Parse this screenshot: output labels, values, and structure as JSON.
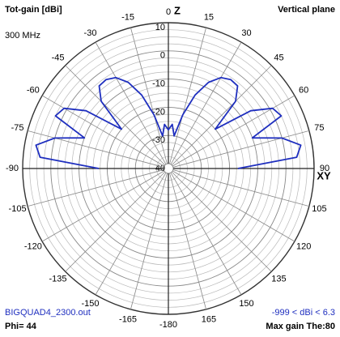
{
  "chart_data": {
    "type": "polar",
    "title": "Tot-gain [dBi]",
    "subtitle": "Vertical plane",
    "frequency": "300 MHz",
    "axis_label_vertical": "Z",
    "axis_label_horizontal": "XY",
    "file": "BIGQUAD4_2300.out",
    "phi": "Phi= 44",
    "gain_range": "-999 < dBi < 6.3",
    "max_gain": "Max gain The:80",
    "color": "#1f2fbf",
    "rlim": [
      -40,
      10
    ],
    "rticks": [
      10,
      0,
      -10,
      -20,
      -30,
      -40
    ],
    "angle_ticks": [
      0,
      15,
      30,
      45,
      60,
      75,
      90,
      105,
      120,
      135,
      150,
      165,
      -180,
      -165,
      -150,
      -135,
      -120,
      -105,
      -90,
      -75,
      -60,
      -45,
      -30,
      -15
    ],
    "grid": true,
    "x": [
      -90,
      -85,
      -80,
      -75,
      -70,
      -65,
      -60,
      -55,
      -50,
      -45,
      -40,
      -35,
      -30,
      -25,
      -20,
      -15,
      -10,
      -5,
      0,
      5,
      10,
      15,
      20,
      25,
      30,
      35,
      40,
      45,
      50,
      55,
      60,
      65,
      70,
      75,
      80,
      85,
      90
    ],
    "values": [
      -17,
      4,
      6,
      0,
      -10,
      2.5,
      1,
      -6,
      -20,
      -8,
      -3.5,
      -3.2,
      -4.5,
      -8,
      -14,
      -22,
      -30,
      -26,
      -28,
      -26,
      -30,
      -22,
      -14,
      -8,
      -4.5,
      -3.2,
      -3.5,
      -8,
      -20,
      -6,
      1,
      2.5,
      -10,
      0,
      6,
      4,
      -17
    ]
  }
}
